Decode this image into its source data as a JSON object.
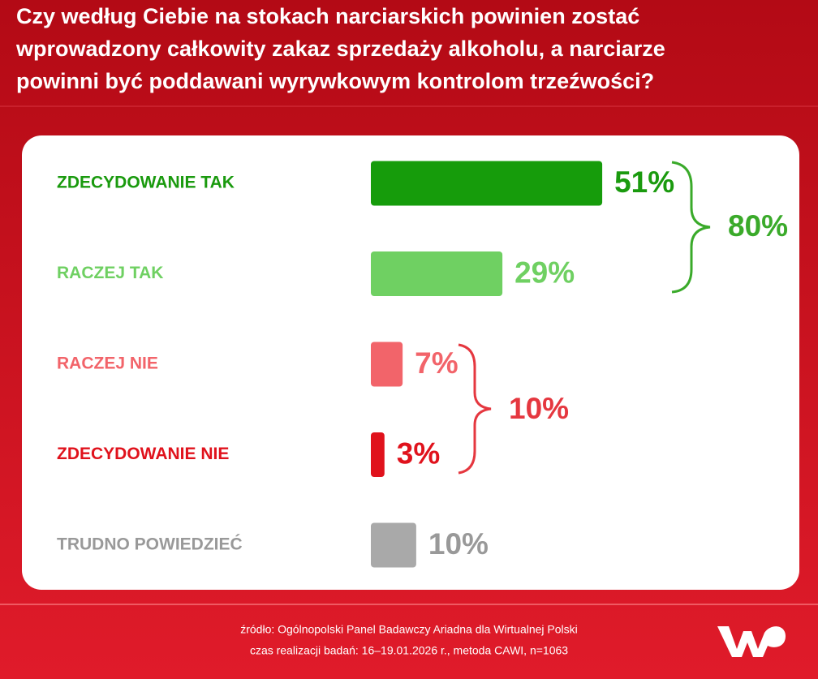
{
  "chart_data": {
    "type": "bar",
    "title": [
      "Czy według Ciebie na stokach narciarskich powinien zostać",
      "wprowadzony całkowity zakaz sprzedaży alkoholu, a narciarze",
      "powinni być poddawani wyrywkowym kontrolom trzeźwości?"
    ],
    "categories": [
      "ZDECYDOWANIE TAK",
      "RACZEJ TAK",
      "RACZEJ NIE",
      "ZDECYDOWANIE NIE",
      "TRUDNO POWIEDZIEĆ"
    ],
    "values": [
      51,
      29,
      7,
      3,
      10
    ],
    "value_labels": [
      "51%",
      "29%",
      "7%",
      "3%",
      "10%"
    ],
    "colors": [
      "#169c0b",
      "#6fd062",
      "#f2646a",
      "#e0121c",
      "#a9a9a9"
    ],
    "label_colors": [
      "#1a9a0e",
      "#6fd062",
      "#f2646a",
      "#e0121c",
      "#999999"
    ],
    "groups": [
      {
        "label": "80%",
        "color": "#3aaa2a"
      },
      {
        "label": "10%",
        "color": "#e5373f"
      }
    ],
    "source": [
      "źródło: Ogólnopolski Panel Badawczy Ariadna dla Wirtualnej Polski",
      "czas realizacji badań: 16–19.01.2026 r., metoda CAWI, n=1063"
    ]
  }
}
